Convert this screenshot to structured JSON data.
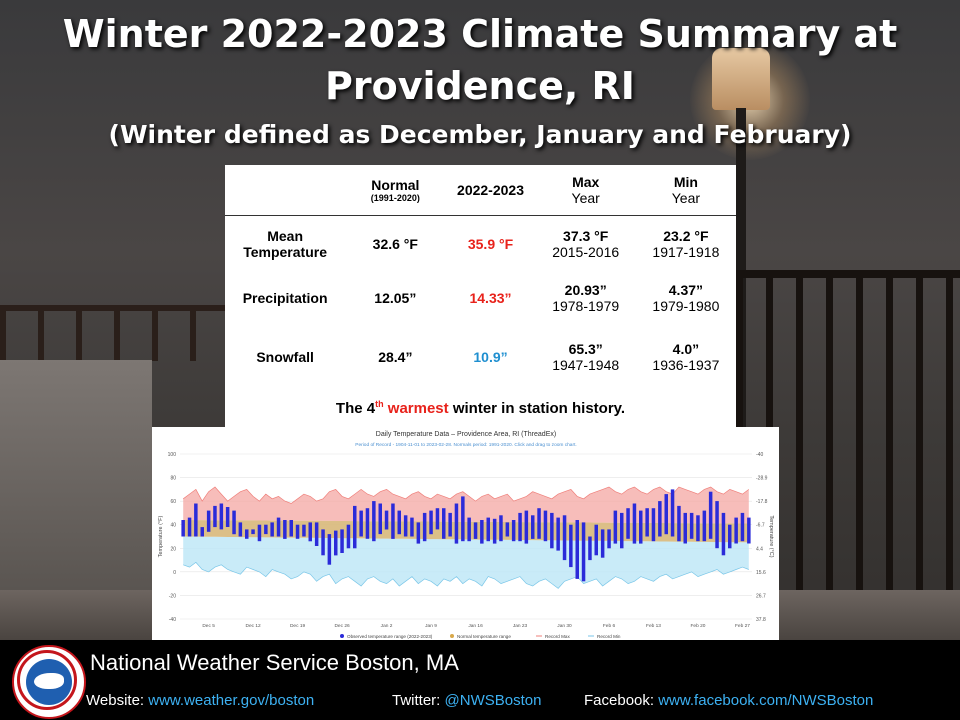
{
  "header": {
    "title": "Winter 2022-2023 Climate Summary at Providence, RI",
    "subtitle": "(Winter defined as December, January and February)"
  },
  "table": {
    "headers": {
      "normal": "Normal",
      "normal_period": "(1991-2020)",
      "current": "2022-2023",
      "max": "Max",
      "max_sub": "Year",
      "min": "Min",
      "min_sub": "Year"
    },
    "rows": [
      {
        "label_line1": "Mean",
        "label_line2": "Temperature",
        "normal": "32.6 °F",
        "current": "35.9 °F",
        "current_color": "#e8221b",
        "max": "37.3 °F",
        "max_year": "2015-2016",
        "min": "23.2 °F",
        "min_year": "1917-1918"
      },
      {
        "label_line1": "Precipitation",
        "label_line2": "",
        "normal": "12.05”",
        "current": "14.33”",
        "current_color": "#e8221b",
        "max": "20.93”",
        "max_year": "1978-1979",
        "min": "4.37”",
        "min_year": "1979-1980"
      },
      {
        "label_line1": "Snowfall",
        "label_line2": "",
        "normal": "28.4”",
        "current": "10.9”",
        "current_color": "#1f8fd0",
        "max": "65.3”",
        "max_year": "1947-1948",
        "min": "4.0”",
        "min_year": "1936-1937"
      }
    ],
    "note_pre": "The 4",
    "note_sup": "th",
    "note_highlight": "warmest",
    "note_post": "winter in station history."
  },
  "chart_data": {
    "type": "bar",
    "title": "Daily Temperature Data – Providence Area, RI (ThreadEx)",
    "subtitle": "Period of Record - 1904-11-01 to 2023-02-28. Normals period: 1991-2020. Click and drag to zoom chart.",
    "ylabel": "Temperature (°F)",
    "y2label": "Temperature (°C)",
    "ylim": [
      -40,
      100
    ],
    "yticks": [
      -40,
      -20,
      0,
      20,
      40,
      60,
      80,
      100
    ],
    "y2ticks": [
      "37.8",
      "26.7",
      "15.6",
      "4.4",
      "-6.7",
      "-17.8",
      "-28.9",
      "-40"
    ],
    "xtick_labels": [
      "Dec 5",
      "Dec 12",
      "Dec 19",
      "Dec 26",
      "Jan 2",
      "Jan 9",
      "Jan 16",
      "Jan 23",
      "Jan 30",
      "Feb 6",
      "Feb 13",
      "Feb 20",
      "Feb 27"
    ],
    "xtick_days": [
      4,
      11,
      18,
      25,
      32,
      39,
      46,
      53,
      60,
      67,
      74,
      81,
      88
    ],
    "days": 90,
    "legend": [
      "Observed temperature range (2022-2023)",
      "Normal temperature range",
      "Record Max",
      "Record Min"
    ],
    "colors": {
      "observed": "#2b2bd9",
      "normal": "#d8b87a",
      "record_max": "#f4a7a3",
      "record_min": "#bfe8f7",
      "grid": "#e3e3e3"
    },
    "normal_high_start": 44,
    "normal_high_end": 41,
    "normal_low_start": 30,
    "normal_low_end": 25,
    "record_max": [
      62,
      66,
      70,
      60,
      68,
      72,
      66,
      60,
      64,
      68,
      70,
      64,
      60,
      66,
      62,
      64,
      60,
      58,
      62,
      66,
      64,
      60,
      62,
      68,
      70,
      64,
      62,
      66,
      70,
      66,
      64,
      68,
      70,
      66,
      64,
      62,
      66,
      68,
      64,
      62,
      66,
      64,
      62,
      66,
      68,
      64,
      60,
      64,
      66,
      62,
      64,
      66,
      60,
      62,
      64,
      68,
      66,
      64,
      62,
      66,
      68,
      70,
      64,
      62,
      66,
      68,
      70,
      72,
      68,
      66,
      70,
      72,
      68,
      66,
      70,
      72,
      68,
      66,
      72,
      70,
      68,
      66,
      70,
      72,
      68,
      66,
      70,
      68,
      66,
      70
    ],
    "record_min": [
      6,
      4,
      8,
      2,
      0,
      4,
      6,
      2,
      0,
      -2,
      4,
      2,
      0,
      -4,
      2,
      0,
      -2,
      -6,
      -4,
      0,
      -2,
      -8,
      -4,
      -2,
      -10,
      -6,
      -4,
      -8,
      -12,
      -6,
      -4,
      -8,
      -10,
      -6,
      -12,
      -8,
      -4,
      -10,
      -6,
      -8,
      -12,
      -6,
      -8,
      -4,
      -10,
      -6,
      -8,
      -12,
      -4,
      -6,
      -10,
      -8,
      -6,
      -4,
      -10,
      -12,
      -8,
      -6,
      -10,
      -14,
      -8,
      -6,
      -4,
      -10,
      -8,
      -6,
      -12,
      -8,
      -4,
      -6,
      -10,
      -8,
      -4,
      -6,
      -8,
      -4,
      -2,
      -6,
      -4,
      -2,
      0,
      -4,
      -2,
      0,
      2,
      -2,
      0,
      2,
      4,
      2
    ],
    "observed_high": [
      44,
      46,
      58,
      38,
      52,
      56,
      58,
      55,
      52,
      42,
      36,
      36,
      40,
      40,
      42,
      46,
      44,
      44,
      40,
      40,
      42,
      42,
      36,
      32,
      35,
      36,
      40,
      56,
      52,
      54,
      60,
      58,
      52,
      58,
      52,
      48,
      46,
      42,
      50,
      52,
      54,
      54,
      50,
      58,
      64,
      46,
      42,
      44,
      46,
      45,
      48,
      42,
      44,
      50,
      52,
      48,
      54,
      52,
      50,
      46,
      48,
      40,
      44,
      42,
      30,
      40,
      36,
      36,
      52,
      50,
      54,
      58,
      52,
      54,
      54,
      60,
      66,
      70,
      56,
      50,
      50,
      48,
      52,
      68,
      60,
      50,
      40,
      46,
      50,
      46
    ],
    "observed_low": [
      30,
      30,
      30,
      30,
      34,
      38,
      36,
      38,
      32,
      30,
      28,
      32,
      26,
      32,
      30,
      30,
      28,
      30,
      28,
      30,
      26,
      22,
      14,
      6,
      14,
      16,
      20,
      20,
      30,
      28,
      26,
      32,
      36,
      28,
      32,
      30,
      30,
      24,
      26,
      32,
      36,
      28,
      30,
      24,
      26,
      26,
      28,
      24,
      26,
      24,
      26,
      30,
      26,
      26,
      24,
      28,
      28,
      26,
      20,
      18,
      10,
      4,
      -6,
      -8,
      10,
      14,
      12,
      20,
      24,
      20,
      28,
      24,
      24,
      30,
      26,
      30,
      32,
      30,
      26,
      24,
      28,
      26,
      26,
      28,
      20,
      14,
      20,
      24,
      26,
      24
    ]
  },
  "footer": {
    "org": "National Weather Service Boston, MA",
    "website_label": "Website:",
    "website": "www.weather.gov/boston",
    "twitter_label": "Twitter:",
    "twitter": "@NWSBoston",
    "facebook_label": "Facebook:",
    "facebook": "www.facebook.com/NWSBoston"
  }
}
